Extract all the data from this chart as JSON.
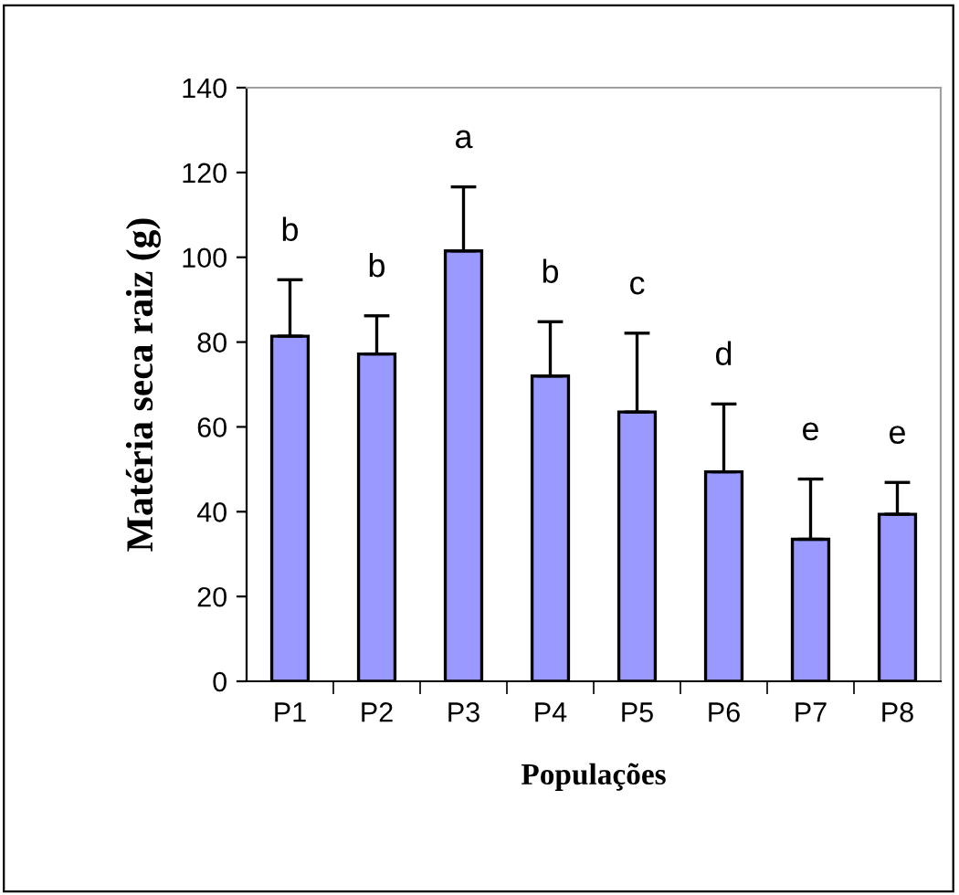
{
  "chart_data": {
    "type": "bar",
    "xlabel": "Populações",
    "ylabel": "Matéria seca raiz (g)",
    "categories": [
      "P1",
      "P2",
      "P3",
      "P4",
      "P5",
      "P6",
      "P7",
      "P8"
    ],
    "values": [
      81.4,
      77.2,
      101.5,
      72,
      63.5,
      49.4,
      33.5,
      39.4
    ],
    "errors": [
      [
        81.4,
        94.7
      ],
      [
        77.2,
        86.2
      ],
      [
        101.5,
        116.6
      ],
      [
        72,
        84.8
      ],
      [
        63.5,
        82.1
      ],
      [
        49.4,
        65.4
      ],
      [
        33.5,
        47.7
      ],
      [
        39.4,
        46.9
      ]
    ],
    "color": "#9999ff",
    "ylim": [
      0,
      140
    ],
    "yticks": [
      0,
      20,
      40,
      60,
      80,
      100,
      120,
      140
    ],
    "grid": false,
    "legend": false,
    "annotations": [
      "b",
      "b",
      "a",
      "b",
      "c",
      "d",
      "e",
      "e"
    ]
  }
}
